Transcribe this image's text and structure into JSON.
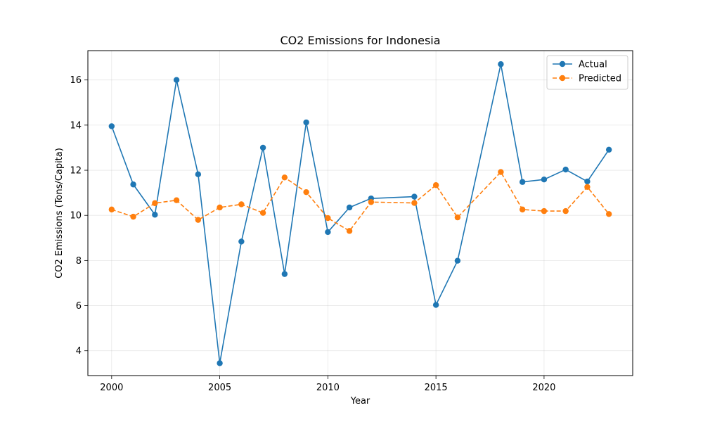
{
  "chart_data": {
    "type": "line",
    "title": "CO2 Emissions for Indonesia",
    "xlabel": "Year",
    "ylabel": "CO2 Emissions (Tons/Capita)",
    "xlim": [
      1998.9,
      2024.1
    ],
    "ylim": [
      2.9,
      17.3
    ],
    "xticks": [
      2000,
      2005,
      2010,
      2015,
      2020
    ],
    "yticks": [
      4,
      6,
      8,
      10,
      12,
      14,
      16
    ],
    "grid": true,
    "legend": "top-right",
    "series": [
      {
        "name": "Actual",
        "color": "#1f77b4",
        "style": "solid",
        "x": [
          2000,
          2001,
          2002,
          2003,
          2004,
          2005,
          2006,
          2007,
          2008,
          2009,
          2010,
          2011,
          2012,
          2014,
          2015,
          2016,
          2018,
          2019,
          2020,
          2021,
          2022,
          2023
        ],
        "y": [
          13.95,
          11.37,
          10.03,
          16.0,
          11.82,
          3.45,
          8.84,
          13.0,
          7.4,
          14.12,
          9.26,
          10.35,
          10.75,
          10.83,
          6.03,
          7.99,
          16.7,
          11.48,
          11.59,
          12.03,
          11.5,
          12.91
        ]
      },
      {
        "name": "Predicted",
        "color": "#ff7f0e",
        "style": "dashed",
        "x": [
          2000,
          2001,
          2002,
          2003,
          2004,
          2005,
          2006,
          2007,
          2008,
          2009,
          2010,
          2011,
          2012,
          2014,
          2015,
          2016,
          2018,
          2019,
          2020,
          2021,
          2022,
          2023
        ],
        "y": [
          10.26,
          9.94,
          10.54,
          10.67,
          9.8,
          10.35,
          10.49,
          10.11,
          11.68,
          11.03,
          9.88,
          9.31,
          10.59,
          10.55,
          11.34,
          9.91,
          11.92,
          10.26,
          10.19,
          10.19,
          11.26,
          10.06
        ]
      }
    ]
  }
}
